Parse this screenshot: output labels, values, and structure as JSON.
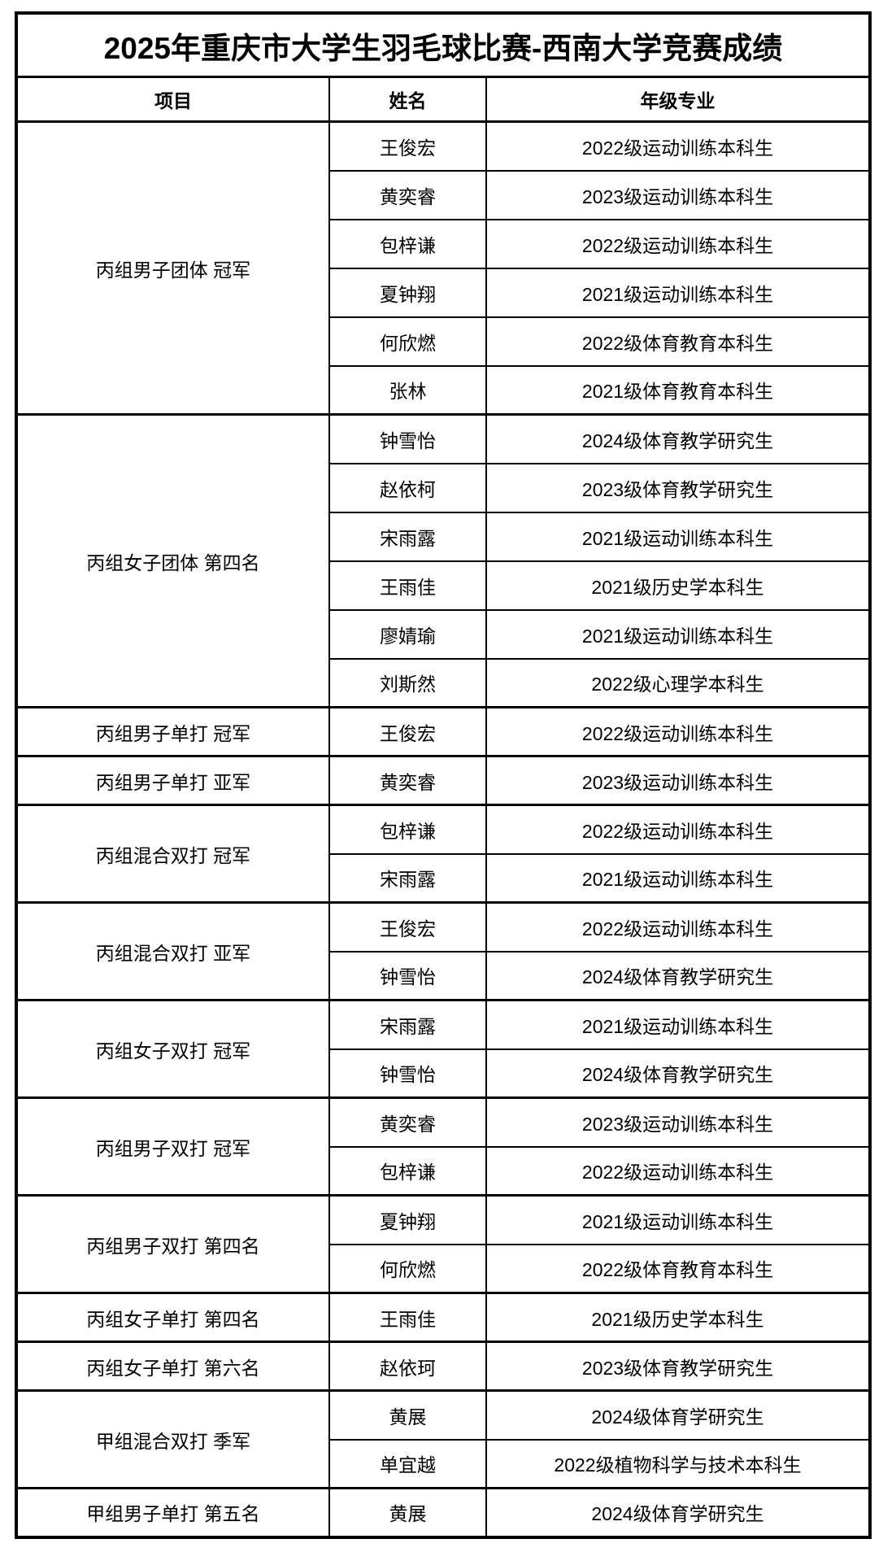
{
  "title": "2025年重庆市大学生羽毛球比赛-西南大学竞赛成绩",
  "colors": {
    "border": "#000000",
    "text": "#000000",
    "background": "#ffffff"
  },
  "table": {
    "headers": [
      "项目",
      "姓名",
      "年级专业"
    ],
    "sections": [
      {
        "event": "丙组男子团体 冠军",
        "members": [
          {
            "name": "王俊宏",
            "major": "2022级运动训练本科生"
          },
          {
            "name": "黄奕睿",
            "major": "2023级运动训练本科生"
          },
          {
            "name": "包梓谦",
            "major": "2022级运动训练本科生"
          },
          {
            "name": "夏钟翔",
            "major": "2021级运动训练本科生"
          },
          {
            "name": "何欣燃",
            "major": "2022级体育教育本科生"
          },
          {
            "name": "张林",
            "major": "2021级体育教育本科生"
          }
        ]
      },
      {
        "event": "丙组女子团体 第四名",
        "members": [
          {
            "name": "钟雪怡",
            "major": "2024级体育教学研究生"
          },
          {
            "name": "赵依柯",
            "major": "2023级体育教学研究生"
          },
          {
            "name": "宋雨露",
            "major": "2021级运动训练本科生"
          },
          {
            "name": "王雨佳",
            "major": "2021级历史学本科生"
          },
          {
            "name": "廖婧瑜",
            "major": "2021级运动训练本科生"
          },
          {
            "name": "刘斯然",
            "major": "2022级心理学本科生"
          }
        ]
      },
      {
        "event": "丙组男子单打 冠军",
        "members": [
          {
            "name": "王俊宏",
            "major": "2022级运动训练本科生"
          }
        ]
      },
      {
        "event": "丙组男子单打 亚军",
        "members": [
          {
            "name": "黄奕睿",
            "major": "2023级运动训练本科生"
          }
        ]
      },
      {
        "event": "丙组混合双打 冠军",
        "members": [
          {
            "name": "包梓谦",
            "major": "2022级运动训练本科生"
          },
          {
            "name": "宋雨露",
            "major": "2021级运动训练本科生"
          }
        ]
      },
      {
        "event": "丙组混合双打 亚军",
        "members": [
          {
            "name": "王俊宏",
            "major": "2022级运动训练本科生"
          },
          {
            "name": "钟雪怡",
            "major": "2024级体育教学研究生"
          }
        ]
      },
      {
        "event": "丙组女子双打 冠军",
        "members": [
          {
            "name": "宋雨露",
            "major": "2021级运动训练本科生"
          },
          {
            "name": "钟雪怡",
            "major": "2024级体育教学研究生"
          }
        ]
      },
      {
        "event": "丙组男子双打 冠军",
        "members": [
          {
            "name": "黄奕睿",
            "major": "2023级运动训练本科生"
          },
          {
            "name": "包梓谦",
            "major": "2022级运动训练本科生"
          }
        ]
      },
      {
        "event": "丙组男子双打 第四名",
        "members": [
          {
            "name": "夏钟翔",
            "major": "2021级运动训练本科生"
          },
          {
            "name": "何欣燃",
            "major": "2022级体育教育本科生"
          }
        ]
      },
      {
        "event": "丙组女子单打 第四名",
        "members": [
          {
            "name": "王雨佳",
            "major": "2021级历史学本科生"
          }
        ]
      },
      {
        "event": "丙组女子单打 第六名",
        "members": [
          {
            "name": "赵依珂",
            "major": "2023级体育教学研究生"
          }
        ]
      },
      {
        "event": "甲组混合双打 季军",
        "members": [
          {
            "name": "黄展",
            "major": "2024级体育学研究生"
          },
          {
            "name": "单宜越",
            "major": "2022级植物科学与技术本科生"
          }
        ]
      },
      {
        "event": "甲组男子单打 第五名",
        "members": [
          {
            "name": "黄展",
            "major": "2024级体育学研究生"
          }
        ]
      }
    ]
  }
}
